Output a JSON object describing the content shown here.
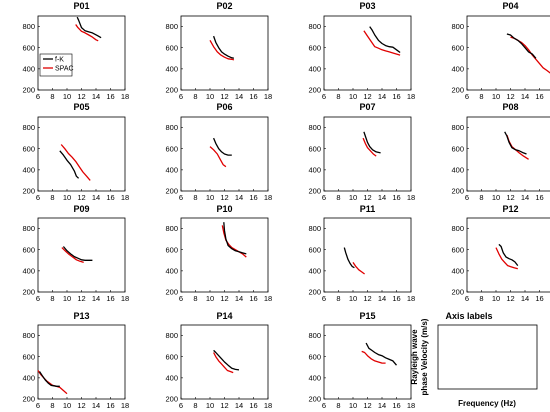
{
  "figure": {
    "legend": [
      "f-K",
      "SPAC"
    ],
    "legend_panel": "P01",
    "colors": {
      "f-K": "#000000",
      "SPAC": "#e00000"
    },
    "ylabel_line1": "Rayleigh wave",
    "ylabel_line2": "phase Velocity (m/s)",
    "xlabel": "Frequency (Hz)"
  },
  "chart_data": [
    {
      "type": "line",
      "title": "P01",
      "xlim": [
        6,
        18
      ],
      "ylim": [
        200,
        900
      ],
      "xticks": [
        6,
        8,
        10,
        12,
        14,
        16,
        18
      ],
      "yticks": [
        200,
        400,
        600,
        800
      ],
      "series": [
        {
          "name": "f-K",
          "x": [
            11.4,
            11.6,
            12.0,
            12.5,
            13.0,
            13.5,
            14.2,
            14.7
          ],
          "y": [
            890,
            860,
            790,
            760,
            750,
            740,
            715,
            695
          ]
        },
        {
          "name": "SPAC",
          "x": [
            11.2,
            11.5,
            12.0,
            12.5,
            13.0,
            13.5,
            14.0,
            14.3
          ],
          "y": [
            820,
            790,
            755,
            740,
            720,
            700,
            675,
            665
          ]
        }
      ]
    },
    {
      "type": "line",
      "title": "P02",
      "xlim": [
        6,
        18
      ],
      "ylim": [
        200,
        900
      ],
      "xticks": [
        6,
        8,
        10,
        12,
        14,
        16,
        18
      ],
      "yticks": [
        200,
        400,
        600,
        800
      ],
      "series": [
        {
          "name": "f-K",
          "x": [
            10.5,
            10.8,
            11.2,
            11.6,
            12.0,
            12.5,
            13.0,
            13.3
          ],
          "y": [
            710,
            650,
            600,
            560,
            540,
            520,
            505,
            500
          ]
        },
        {
          "name": "SPAC",
          "x": [
            10.0,
            10.5,
            11.0,
            11.5,
            12.0,
            12.5,
            13.0,
            13.3
          ],
          "y": [
            670,
            610,
            560,
            530,
            510,
            495,
            490,
            485
          ]
        }
      ]
    },
    {
      "type": "line",
      "title": "P03",
      "xlim": [
        6,
        18
      ],
      "ylim": [
        200,
        900
      ],
      "xticks": [
        6,
        8,
        10,
        12,
        14,
        16,
        18
      ],
      "yticks": [
        200,
        400,
        600,
        800
      ],
      "series": [
        {
          "name": "f-K",
          "x": [
            12.3,
            12.6,
            13.0,
            13.5,
            14.0,
            14.5,
            15.0,
            15.5,
            16.0,
            16.5
          ],
          "y": [
            800,
            770,
            720,
            670,
            640,
            620,
            610,
            605,
            580,
            555
          ]
        },
        {
          "name": "SPAC",
          "x": [
            11.5,
            12.0,
            12.5,
            13.0,
            13.5,
            14.0,
            14.5,
            15.0,
            15.5,
            16.5
          ],
          "y": [
            760,
            710,
            660,
            610,
            595,
            580,
            570,
            560,
            550,
            530
          ]
        }
      ]
    },
    {
      "type": "line",
      "title": "P04",
      "xlim": [
        6,
        18
      ],
      "ylim": [
        200,
        900
      ],
      "xticks": [
        6,
        8,
        10,
        12,
        14,
        16,
        18
      ],
      "yticks": [
        200,
        400,
        600,
        800
      ],
      "series": [
        {
          "name": "f-K",
          "x": [
            11.5,
            12.0,
            12.5,
            13.0,
            13.5,
            14.0,
            14.5,
            15.0,
            15.5
          ],
          "y": [
            730,
            720,
            690,
            670,
            640,
            600,
            560,
            540,
            500
          ]
        },
        {
          "name": "SPAC",
          "x": [
            12.0,
            12.5,
            13.0,
            13.5,
            14.0,
            14.5,
            15.0,
            15.5,
            16.0,
            16.5,
            17.0,
            17.5
          ],
          "y": [
            700,
            690,
            670,
            650,
            620,
            580,
            530,
            490,
            450,
            410,
            385,
            360
          ]
        }
      ]
    },
    {
      "type": "line",
      "title": "P05",
      "xlim": [
        6,
        18
      ],
      "ylim": [
        200,
        900
      ],
      "xticks": [
        6,
        8,
        10,
        12,
        14,
        16,
        18
      ],
      "yticks": [
        200,
        400,
        600,
        800
      ],
      "series": [
        {
          "name": "f-K",
          "x": [
            9.0,
            9.5,
            10.0,
            10.5,
            11.0,
            11.3,
            11.6
          ],
          "y": [
            580,
            540,
            490,
            450,
            390,
            340,
            320
          ]
        },
        {
          "name": "SPAC",
          "x": [
            9.2,
            9.7,
            10.2,
            10.7,
            11.2,
            11.7,
            12.2,
            12.7,
            13.2
          ],
          "y": [
            640,
            600,
            555,
            520,
            480,
            430,
            380,
            340,
            300
          ]
        }
      ]
    },
    {
      "type": "line",
      "title": "P06",
      "xlim": [
        6,
        18
      ],
      "ylim": [
        200,
        900
      ],
      "xticks": [
        6,
        8,
        10,
        12,
        14,
        16,
        18
      ],
      "yticks": [
        200,
        400,
        600,
        800
      ],
      "series": [
        {
          "name": "f-K",
          "x": [
            10.5,
            10.8,
            11.2,
            11.6,
            12.0,
            12.5,
            13.0
          ],
          "y": [
            700,
            650,
            600,
            570,
            550,
            540,
            540
          ]
        },
        {
          "name": "SPAC",
          "x": [
            10.0,
            10.5,
            11.0,
            11.4,
            11.8,
            12.2
          ],
          "y": [
            620,
            590,
            550,
            500,
            450,
            430
          ]
        }
      ]
    },
    {
      "type": "line",
      "title": "P07",
      "xlim": [
        6,
        18
      ],
      "ylim": [
        200,
        900
      ],
      "xticks": [
        6,
        8,
        10,
        12,
        14,
        16,
        18
      ],
      "yticks": [
        200,
        400,
        600,
        800
      ],
      "series": [
        {
          "name": "f-K",
          "x": [
            11.5,
            11.7,
            12.0,
            12.3,
            12.7,
            13.2,
            13.8
          ],
          "y": [
            760,
            720,
            660,
            620,
            590,
            570,
            560
          ]
        },
        {
          "name": "SPAC",
          "x": [
            11.4,
            11.7,
            12.0,
            12.4,
            12.8,
            13.2
          ],
          "y": [
            700,
            650,
            610,
            580,
            550,
            530
          ]
        }
      ]
    },
    {
      "type": "line",
      "title": "P08",
      "xlim": [
        6,
        18
      ],
      "ylim": [
        200,
        900
      ],
      "xticks": [
        6,
        8,
        10,
        12,
        14,
        16,
        18
      ],
      "yticks": [
        200,
        400,
        600,
        800
      ],
      "series": [
        {
          "name": "f-K",
          "x": [
            11.2,
            11.5,
            11.8,
            12.2,
            12.7,
            13.2,
            13.8,
            14.2
          ],
          "y": [
            760,
            720,
            660,
            610,
            590,
            580,
            560,
            550
          ]
        },
        {
          "name": "SPAC",
          "x": [
            11.5,
            11.8,
            12.2,
            12.7,
            13.2,
            13.8,
            14.5
          ],
          "y": [
            730,
            670,
            620,
            590,
            560,
            530,
            500
          ]
        }
      ]
    },
    {
      "type": "line",
      "title": "P09",
      "xlim": [
        6,
        18
      ],
      "ylim": [
        200,
        900
      ],
      "xticks": [
        6,
        8,
        10,
        12,
        14,
        16,
        18
      ],
      "yticks": [
        200,
        400,
        600,
        800
      ],
      "series": [
        {
          "name": "f-K",
          "x": [
            9.5,
            10.0,
            10.5,
            11.0,
            11.5,
            12.0,
            12.5,
            13.0,
            13.5
          ],
          "y": [
            630,
            590,
            560,
            535,
            520,
            505,
            500,
            500,
            500
          ]
        },
        {
          "name": "SPAC",
          "x": [
            9.3,
            9.8,
            10.3,
            10.8,
            11.3,
            11.8,
            12.3
          ],
          "y": [
            620,
            585,
            555,
            530,
            505,
            490,
            480
          ]
        }
      ]
    },
    {
      "type": "line",
      "title": "P10",
      "xlim": [
        6,
        18
      ],
      "ylim": [
        200,
        900
      ],
      "xticks": [
        6,
        8,
        10,
        12,
        14,
        16,
        18
      ],
      "yticks": [
        200,
        400,
        600,
        800
      ],
      "series": [
        {
          "name": "f-K",
          "x": [
            11.9,
            12.0,
            12.2,
            12.5,
            13.0,
            13.5,
            14.0,
            14.5,
            15.0
          ],
          "y": [
            860,
            780,
            700,
            640,
            610,
            590,
            580,
            570,
            560
          ]
        },
        {
          "name": "SPAC",
          "x": [
            11.7,
            11.9,
            12.2,
            12.6,
            13.0,
            13.5,
            14.0,
            14.5,
            15.0
          ],
          "y": [
            830,
            760,
            690,
            650,
            620,
            600,
            580,
            560,
            530
          ]
        }
      ]
    },
    {
      "type": "line",
      "title": "P11",
      "xlim": [
        6,
        18
      ],
      "ylim": [
        200,
        900
      ],
      "xticks": [
        6,
        8,
        10,
        12,
        14,
        16,
        18
      ],
      "yticks": [
        200,
        400,
        600,
        800
      ],
      "series": [
        {
          "name": "f-K",
          "x": [
            8.8,
            9.0,
            9.3,
            9.6,
            9.9,
            10.2
          ],
          "y": [
            620,
            570,
            510,
            470,
            440,
            430
          ]
        },
        {
          "name": "SPAC",
          "x": [
            10.0,
            10.4,
            10.8,
            11.2,
            11.6
          ],
          "y": [
            480,
            440,
            410,
            390,
            370
          ]
        }
      ]
    },
    {
      "type": "line",
      "title": "P12",
      "xlim": [
        6,
        18
      ],
      "ylim": [
        200,
        900
      ],
      "xticks": [
        6,
        8,
        10,
        12,
        14,
        16,
        18
      ],
      "yticks": [
        200,
        400,
        600,
        800
      ],
      "series": [
        {
          "name": "f-K",
          "x": [
            10.4,
            10.7,
            11.0,
            11.4,
            11.8,
            12.2,
            12.6,
            13.0
          ],
          "y": [
            650,
            630,
            570,
            530,
            515,
            505,
            485,
            450
          ]
        },
        {
          "name": "SPAC",
          "x": [
            10.0,
            10.4,
            10.8,
            11.2,
            11.6,
            12.0,
            12.5,
            13.0
          ],
          "y": [
            620,
            560,
            510,
            480,
            450,
            440,
            430,
            420
          ]
        }
      ]
    },
    {
      "type": "line",
      "title": "P13",
      "xlim": [
        6,
        18
      ],
      "ylim": [
        200,
        900
      ],
      "xticks": [
        6,
        8,
        10,
        12,
        14,
        16,
        18
      ],
      "yticks": [
        200,
        400,
        600,
        800
      ],
      "series": [
        {
          "name": "f-K",
          "x": [
            6.2,
            6.6,
            7.0,
            7.4,
            7.8,
            8.2,
            8.6,
            9.0
          ],
          "y": [
            460,
            420,
            380,
            350,
            330,
            325,
            320,
            320
          ]
        },
        {
          "name": "SPAC",
          "x": [
            6.0,
            6.4,
            6.8,
            7.2,
            7.6,
            8.0,
            8.5,
            9.0,
            9.5,
            10.0
          ],
          "y": [
            470,
            430,
            400,
            370,
            350,
            330,
            320,
            310,
            280,
            250
          ]
        }
      ]
    },
    {
      "type": "line",
      "title": "P14",
      "xlim": [
        6,
        18
      ],
      "ylim": [
        200,
        900
      ],
      "xticks": [
        6,
        8,
        10,
        12,
        14,
        16,
        18
      ],
      "yticks": [
        200,
        400,
        600,
        800
      ],
      "series": [
        {
          "name": "f-K",
          "x": [
            10.5,
            10.8,
            11.2,
            11.6,
            12.0,
            12.5,
            13.0,
            13.5,
            14.0
          ],
          "y": [
            660,
            640,
            610,
            580,
            550,
            520,
            490,
            480,
            475
          ]
        },
        {
          "name": "SPAC",
          "x": [
            10.5,
            10.8,
            11.2,
            11.6,
            12.0,
            12.4,
            12.8,
            13.2
          ],
          "y": [
            640,
            600,
            560,
            530,
            500,
            470,
            460,
            450
          ]
        }
      ]
    },
    {
      "type": "line",
      "title": "P15",
      "xlim": [
        6,
        18
      ],
      "ylim": [
        200,
        900
      ],
      "xticks": [
        6,
        8,
        10,
        12,
        14,
        16,
        18
      ],
      "yticks": [
        200,
        400,
        600,
        800
      ],
      "series": [
        {
          "name": "f-K",
          "x": [
            11.8,
            12.2,
            12.6,
            13.0,
            13.5,
            14.0,
            14.5,
            15.0,
            15.5,
            16.0
          ],
          "y": [
            730,
            680,
            660,
            640,
            620,
            610,
            590,
            575,
            560,
            520
          ]
        },
        {
          "name": "SPAC",
          "x": [
            11.2,
            11.6,
            12.0,
            12.5,
            13.0,
            13.5,
            14.0,
            14.5
          ],
          "y": [
            650,
            640,
            610,
            580,
            560,
            550,
            540,
            540
          ]
        }
      ]
    }
  ],
  "axis_labels_panel": {
    "title": "Axis labels"
  }
}
